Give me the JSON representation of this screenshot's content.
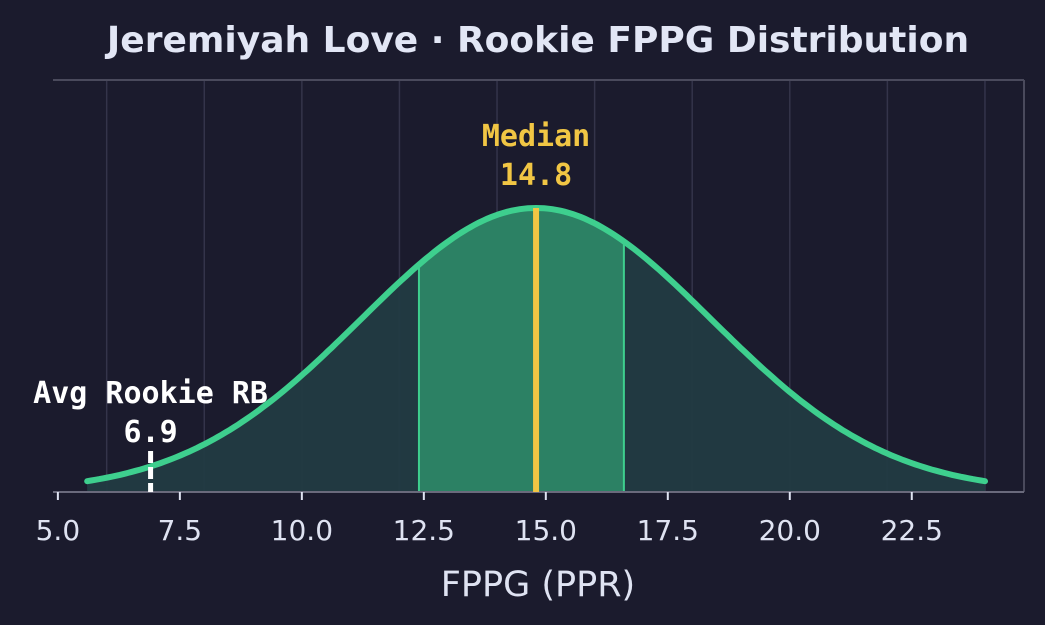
{
  "chart_data": {
    "type": "area",
    "title": "Jeremiyah Love · Rookie FPPG Distribution",
    "xlabel": "FPPG (PPR)",
    "ylabel": "",
    "xlim": [
      4.9,
      24.8
    ],
    "x_ticks": [
      "5.0",
      "7.5",
      "10.0",
      "12.5",
      "15.0",
      "17.5",
      "20.0",
      "22.5"
    ],
    "grid": {
      "vertical": true,
      "horizontal": false
    },
    "distribution": {
      "shape": "normal",
      "mean": 14.8,
      "std_dev": 3.6,
      "x_range": [
        5.6,
        24.0
      ],
      "highlight_band": [
        12.4,
        16.6
      ]
    },
    "annotations": [
      {
        "id": "median",
        "label": "Median",
        "value_text": "14.8",
        "x": 14.8,
        "color": "#f1c644"
      },
      {
        "id": "avg-rookie",
        "label": "Avg Rookie RB",
        "value_text": "6.9",
        "x": 6.9,
        "color": "#ffffff"
      }
    ],
    "colors": {
      "background": "#1b1b2d",
      "curve": "#3ecf8e",
      "fill": "#223b42",
      "band_fill": "#2e8a68",
      "grid": "#34344a",
      "median_line": "#f1c644",
      "avg_marker": "#ffffff"
    }
  }
}
